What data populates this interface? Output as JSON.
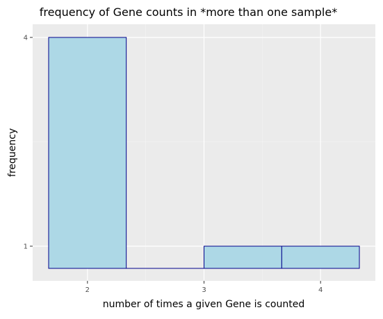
{
  "chart_data": {
    "type": "bar",
    "title": "frequency of Gene counts in *more than one sample*",
    "xlabel": "number of times a given Gene is counted",
    "ylabel": "frequency",
    "x_ticks": [
      2,
      3,
      4
    ],
    "y_ticks": [
      1,
      4
    ],
    "xlim": [
      1.53,
      4.47
    ],
    "y_scale": "log10",
    "ylim_log": [
      -0.1,
      0.64
    ],
    "grid": true,
    "legend": "none",
    "bins": [
      {
        "x_start": 1.667,
        "x_end": 2.333,
        "count": 4
      },
      {
        "x_start": 2.333,
        "x_end": 3.0,
        "count": 0
      },
      {
        "x_start": 3.0,
        "x_end": 3.667,
        "count": 1
      },
      {
        "x_start": 3.667,
        "x_end": 4.333,
        "count": 1
      }
    ],
    "colors": {
      "fill": "#add8e6",
      "stroke": "#00008b",
      "panel": "#ebebeb",
      "grid_major": "#ffffff",
      "grid_minor": "#f5f5f5",
      "tick_text": "#4d4d4d",
      "tick_mark": "#333333"
    }
  }
}
